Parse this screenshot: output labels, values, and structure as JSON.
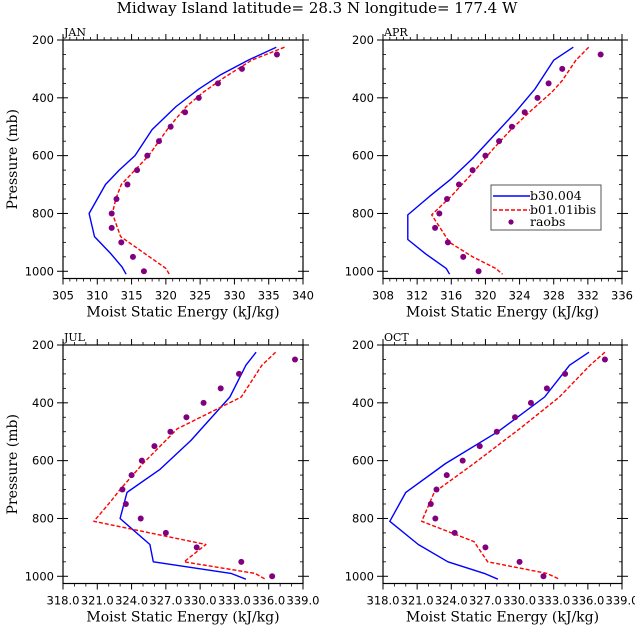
{
  "figure_title": "Midway Island   latitude= 28.3 N longitude= 177.4 W",
  "colors": {
    "b30.004": "#0000ff",
    "b01.01ibis": "#ff0000",
    "raobs": "#800080"
  },
  "legend": {
    "placement": "APR panel, center-right",
    "entries": [
      {
        "label": "b30.004",
        "style": "solid-line"
      },
      {
        "label": "b01.01ibis",
        "style": "dashed-line"
      },
      {
        "label": "raobs",
        "style": "dot"
      }
    ]
  },
  "chart_data": [
    {
      "type": "line",
      "panel": "JAN",
      "title": "JAN",
      "xlabel": "Moist Static Energy (kJ/kg)",
      "ylabel": "Pressure (mb)",
      "xlim": [
        305,
        340
      ],
      "ylim": [
        1025,
        200
      ],
      "y_inverted": true,
      "xticks": [
        305,
        310,
        315,
        320,
        325,
        330,
        335,
        340
      ],
      "xtick_labels": [
        "305",
        "310",
        "315",
        "320",
        "325",
        "330",
        "335",
        "340"
      ],
      "x_minor_per_major": 4,
      "yticks": [
        200,
        400,
        600,
        800,
        1000
      ],
      "ytick_labels": [
        "200",
        "400",
        "600",
        "800",
        "1000"
      ],
      "series": [
        {
          "name": "b30.004",
          "style": "solid",
          "x": [
            336.1,
            332.0,
            328.0,
            324.8,
            321.5,
            318.0,
            315.5,
            313.2,
            311.2,
            308.8,
            309.6,
            312.0,
            313.6,
            314.2
          ],
          "y": [
            225,
            270,
            320,
            370,
            430,
            510,
            600,
            650,
            700,
            800,
            880,
            940,
            985,
            1010
          ]
        },
        {
          "name": "b01.01ibis",
          "style": "dashed",
          "x": [
            337.3,
            332.5,
            328.5,
            325.5,
            323.0,
            320.5,
            317.5,
            315.5,
            313.5,
            312.7,
            312.2,
            313.4,
            317.0,
            320.0,
            320.5
          ],
          "y": [
            225,
            270,
            330,
            380,
            430,
            500,
            600,
            650,
            700,
            750,
            800,
            880,
            940,
            990,
            1010
          ]
        },
        {
          "name": "raobs",
          "style": "markers",
          "x": [
            336.2,
            331.1,
            327.6,
            324.8,
            322.8,
            320.7,
            319.0,
            317.3,
            315.8,
            314.4,
            312.8,
            312.1,
            312.1,
            313.5,
            315.2,
            316.8
          ],
          "y": [
            250,
            300,
            350,
            400,
            450,
            500,
            550,
            600,
            650,
            700,
            750,
            800,
            850,
            900,
            950,
            1000
          ]
        }
      ]
    },
    {
      "type": "line",
      "panel": "APR",
      "title": "APR",
      "xlabel": "Moist Static Energy (kJ/kg)",
      "ylabel": "",
      "xlim": [
        308,
        336
      ],
      "ylim": [
        1025,
        200
      ],
      "y_inverted": true,
      "xticks": [
        308,
        312,
        316,
        320,
        324,
        328,
        332,
        336
      ],
      "xtick_labels": [
        "308",
        "312",
        "316",
        "320",
        "324",
        "328",
        "332",
        "336"
      ],
      "x_minor_per_major": 4,
      "yticks": [
        200,
        400,
        600,
        800,
        1000
      ],
      "ytick_labels": [
        "200",
        "400",
        "600",
        "800",
        "1000"
      ],
      "series": [
        {
          "name": "b30.004",
          "style": "solid",
          "x": [
            330.3,
            328.0,
            325.8,
            323.5,
            321.0,
            318.5,
            316.0,
            313.5,
            310.9,
            310.9,
            313.0,
            315.4,
            315.8
          ],
          "y": [
            225,
            270,
            370,
            450,
            530,
            610,
            680,
            740,
            805,
            890,
            940,
            990,
            1010
          ]
        },
        {
          "name": "b01.01ibis",
          "style": "dashed",
          "x": [
            332.1,
            330.6,
            329.0,
            327.8,
            325.5,
            323.0,
            320.8,
            318.5,
            316.0,
            313.7,
            315.8,
            318.5,
            321.2,
            322.0
          ],
          "y": [
            225,
            270,
            340,
            380,
            440,
            510,
            580,
            660,
            740,
            805,
            900,
            950,
            990,
            1010
          ]
        },
        {
          "name": "raobs",
          "style": "markers",
          "x": [
            333.5,
            329.0,
            327.4,
            326.1,
            324.6,
            323.1,
            321.6,
            320.0,
            318.5,
            316.9,
            315.5,
            314.6,
            314.1,
            315.6,
            317.4,
            319.2
          ],
          "y": [
            250,
            300,
            350,
            400,
            450,
            500,
            550,
            600,
            650,
            700,
            750,
            800,
            850,
            900,
            950,
            1000
          ]
        }
      ]
    },
    {
      "type": "line",
      "panel": "JUL",
      "title": "JUL",
      "xlabel": "Moist Static Energy (kJ/kg)",
      "ylabel": "Pressure (mb)",
      "xlim": [
        318,
        339
      ],
      "ylim": [
        1025,
        200
      ],
      "y_inverted": true,
      "xticks": [
        318,
        321,
        324,
        327,
        330,
        333,
        336,
        339
      ],
      "xtick_labels": [
        "318.0",
        "321.0",
        "324.0",
        "327.0",
        "330.0",
        "333.0",
        "336.0",
        "339.0"
      ],
      "x_minor_per_major": 3,
      "yticks": [
        200,
        400,
        600,
        800,
        1000
      ],
      "ytick_labels": [
        "200",
        "400",
        "600",
        "800",
        "1000"
      ],
      "series": [
        {
          "name": "b30.004",
          "style": "solid",
          "x": [
            334.9,
            334.0,
            332.6,
            329.2,
            326.5,
            323.6,
            323.0,
            325.6,
            325.9,
            332.7,
            334.0
          ],
          "y": [
            225,
            270,
            380,
            530,
            630,
            710,
            800,
            890,
            950,
            990,
            1010
          ]
        },
        {
          "name": "b01.01ibis",
          "style": "dashed",
          "x": [
            336.6,
            335.4,
            333.6,
            328.0,
            325.0,
            323.0,
            322.2,
            320.7,
            330.5,
            328.6,
            334.8,
            335.7
          ],
          "y": [
            225,
            270,
            380,
            490,
            610,
            700,
            740,
            810,
            890,
            950,
            990,
            1010
          ]
        },
        {
          "name": "raobs",
          "style": "markers",
          "x": [
            338.3,
            333.4,
            331.8,
            330.3,
            328.8,
            327.4,
            326.0,
            324.9,
            324.0,
            323.2,
            323.5,
            324.8,
            327.0,
            329.7,
            333.6,
            336.3
          ],
          "y": [
            250,
            300,
            350,
            400,
            450,
            500,
            550,
            600,
            650,
            700,
            750,
            800,
            850,
            900,
            950,
            1000
          ]
        }
      ]
    },
    {
      "type": "line",
      "panel": "OCT",
      "title": "OCT",
      "xlabel": "Moist Static Energy (kJ/kg)",
      "ylabel": "",
      "xlim": [
        318,
        339
      ],
      "ylim": [
        1025,
        200
      ],
      "y_inverted": true,
      "xticks": [
        318,
        321,
        324,
        327,
        330,
        333,
        336,
        339
      ],
      "xtick_labels": [
        "318.0",
        "321.0",
        "324.0",
        "327.0",
        "330.0",
        "333.0",
        "336.0",
        "339.0"
      ],
      "x_minor_per_major": 3,
      "yticks": [
        200,
        400,
        600,
        800,
        1000
      ],
      "ytick_labels": [
        "200",
        "400",
        "600",
        "800",
        "1000"
      ],
      "series": [
        {
          "name": "b30.004",
          "style": "solid",
          "x": [
            336.1,
            334.4,
            332.2,
            328.1,
            323.5,
            320.0,
            318.6,
            321.1,
            323.7,
            326.9,
            328.1
          ],
          "y": [
            225,
            270,
            380,
            500,
            610,
            710,
            810,
            890,
            950,
            990,
            1010
          ]
        },
        {
          "name": "b01.01ibis",
          "style": "dashed",
          "x": [
            337.5,
            336.2,
            333.5,
            330.0,
            326.0,
            322.5,
            321.4,
            326.0,
            327.2,
            332.4,
            333.5
          ],
          "y": [
            225,
            270,
            380,
            490,
            610,
            710,
            810,
            880,
            950,
            990,
            1010
          ]
        },
        {
          "name": "raobs",
          "style": "markers",
          "x": [
            337.5,
            334.0,
            332.4,
            331.0,
            329.6,
            328.0,
            326.5,
            325.0,
            323.6,
            322.7,
            322.2,
            322.6,
            324.3,
            327.0,
            330.0,
            332.1
          ],
          "y": [
            250,
            300,
            350,
            400,
            450,
            500,
            550,
            600,
            650,
            700,
            750,
            800,
            850,
            900,
            950,
            1000
          ]
        }
      ]
    }
  ]
}
